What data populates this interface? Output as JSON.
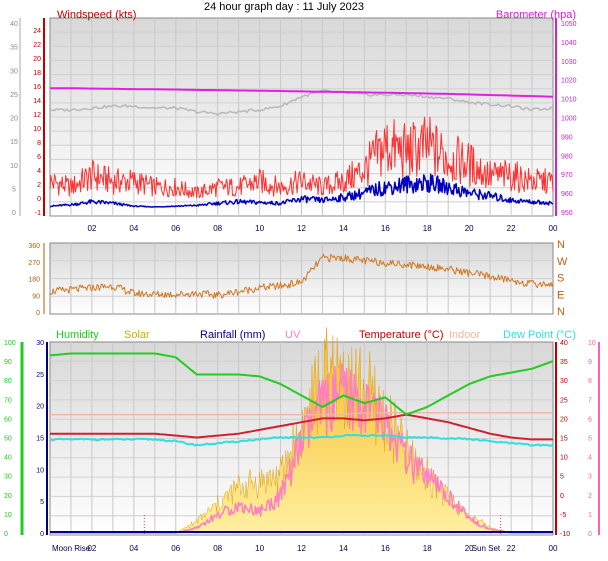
{
  "title": "24 hour graph day : 11 July 2023",
  "time_ticks": [
    "02",
    "04",
    "06",
    "08",
    "10",
    "12",
    "14",
    "16",
    "18",
    "20",
    "22",
    "00"
  ],
  "colors": {
    "wind_speed": "#ff0000",
    "wind_gust": "#ff3030",
    "wind_avg": "#0000c0",
    "barometer": "#e020e0",
    "barometer_gray": "#b8b8b8",
    "direction": "#d07820",
    "humidity": "#22cc22",
    "solar": "#f0c030",
    "rainfall": "#000088",
    "uv": "#ff80c0",
    "temperature": "#d02030",
    "indoor": "#f0b8a0",
    "dew_point": "#30e0e0"
  },
  "chart_data": [
    {
      "type": "line",
      "name": "wind-barometer",
      "legend_left": "Windspeed (kts)",
      "legend_right": "Barometer (hpa)",
      "y_left_outer_ticks": [
        "40",
        "35",
        "30",
        "25",
        "20",
        "15",
        "10",
        "5",
        "0"
      ],
      "y_left_ticks": [
        "24",
        "22",
        "20",
        "18",
        "16",
        "14",
        "12",
        "10",
        "8",
        "6",
        "4",
        "2",
        "0",
        "-1"
      ],
      "y_right_ticks": [
        "1050",
        "1040",
        "1030",
        "1020",
        "1010",
        "1000",
        "990",
        "980",
        "970",
        "960",
        "950"
      ],
      "ylim_left": [
        -1,
        24
      ],
      "ylim_right": [
        950,
        1050
      ],
      "x": [
        0,
        1,
        2,
        3,
        4,
        5,
        6,
        7,
        8,
        9,
        10,
        11,
        12,
        13,
        14,
        15,
        16,
        17,
        18,
        19,
        20,
        21,
        22,
        23,
        24
      ],
      "series": [
        {
          "name": "Barometer",
          "axis": "right",
          "values": [
            1015.5,
            1015.5,
            1015.3,
            1015.2,
            1015.0,
            1014.9,
            1014.8,
            1014.6,
            1014.5,
            1014.3,
            1014.2,
            1014.0,
            1013.8,
            1013.6,
            1013.5,
            1013.3,
            1013.1,
            1012.9,
            1012.7,
            1012.5,
            1012.2,
            1011.9,
            1011.6,
            1011.3,
            1011.0
          ]
        },
        {
          "name": "Barometer trace (grey)",
          "axis": "right",
          "values": [
            1004,
            1004,
            1005,
            1006,
            1006,
            1005,
            1005,
            1003,
            1002,
            1003,
            1004,
            1006,
            1011,
            1014,
            1013,
            1012,
            1012,
            1012,
            1011,
            1010,
            1008,
            1007,
            1006,
            1004,
            1005
          ]
        },
        {
          "name": "Wind gust",
          "axis": "left",
          "values": [
            4,
            3,
            5,
            4,
            4,
            3,
            3,
            2,
            3,
            3,
            4,
            3,
            4,
            3,
            4,
            6,
            10,
            9,
            10,
            8,
            7,
            5,
            5,
            4,
            4
          ]
        },
        {
          "name": "Wind average",
          "axis": "left",
          "values": [
            0.2,
            0.4,
            0.8,
            0.6,
            0.2,
            0.1,
            0.2,
            0.3,
            0.6,
            0.8,
            0.7,
            0.6,
            1.2,
            1.0,
            1.4,
            2.0,
            2.8,
            3.2,
            3.4,
            2.8,
            2.0,
            1.6,
            1.0,
            0.8,
            0.6
          ]
        }
      ]
    },
    {
      "type": "line",
      "name": "wind-direction",
      "y_left_ticks": [
        "360",
        "270",
        "180",
        "90",
        "0"
      ],
      "y_right_ticks": [
        "N",
        "W",
        "S",
        "E",
        "N"
      ],
      "ylim": [
        0,
        360
      ],
      "x": [
        0,
        1,
        2,
        3,
        4,
        5,
        6,
        7,
        8,
        9,
        10,
        11,
        12,
        13,
        14,
        15,
        16,
        17,
        18,
        19,
        20,
        21,
        22,
        23,
        24
      ],
      "values": [
        110,
        120,
        130,
        140,
        100,
        95,
        95,
        100,
        90,
        110,
        130,
        140,
        160,
        290,
        290,
        275,
        265,
        255,
        245,
        230,
        210,
        190,
        170,
        150,
        150
      ]
    },
    {
      "type": "line",
      "name": "temperature-humidity",
      "legend": [
        "Humidity",
        "Solar",
        "Rainfall (mm)",
        "UV",
        "Temperature (°C)",
        "Indoor",
        "Dew Point (°C)"
      ],
      "y_humidity_ticks": [
        "100",
        "90",
        "80",
        "70",
        "60",
        "50",
        "40",
        "30",
        "20",
        "10",
        "0"
      ],
      "y_temp_left_ticks": [
        "30",
        "25",
        "20",
        "15",
        "10",
        "5",
        "0"
      ],
      "y_temp_right_ticks": [
        "40",
        "35",
        "30",
        "25",
        "20",
        "15",
        "10",
        "5",
        "0",
        "-5",
        "-10"
      ],
      "y_uv_ticks": [
        "10",
        "9",
        "8",
        "7",
        "6",
        "5",
        "4",
        "3",
        "2",
        "1",
        "0"
      ],
      "x_labels": [
        "Moon Rise",
        "02",
        "04",
        "06",
        "08",
        "10",
        "12",
        "14",
        "16",
        "18",
        "20",
        "Sun Set",
        "22",
        "00"
      ],
      "x": [
        0,
        1,
        2,
        3,
        4,
        5,
        6,
        7,
        8,
        9,
        10,
        11,
        12,
        13,
        14,
        15,
        16,
        17,
        18,
        19,
        20,
        21,
        22,
        23,
        24
      ],
      "series": [
        {
          "name": "Humidity",
          "unit": "%",
          "values": [
            93,
            94,
            94,
            94,
            94,
            94,
            92,
            83,
            83,
            83,
            82,
            78,
            72,
            66,
            72,
            68,
            71,
            62,
            66,
            72,
            78,
            82,
            84,
            86,
            90
          ]
        },
        {
          "name": "Temperature (°C)",
          "unit": "°C",
          "values": [
            16,
            16,
            16,
            16,
            16,
            16,
            15.5,
            15,
            15.5,
            16,
            17,
            18,
            19,
            20,
            20,
            19.5,
            20,
            21,
            20,
            19,
            17.5,
            16,
            15,
            14.5,
            14.5
          ]
        },
        {
          "name": "Indoor",
          "unit": "°C",
          "values": [
            21,
            21,
            21,
            21,
            21,
            21,
            21,
            21,
            21,
            21,
            21,
            21,
            21,
            21,
            21,
            21.5,
            21.5,
            21.5,
            21.5,
            21.5,
            21.5,
            21.5,
            21.5,
            21.5,
            21.5
          ]
        },
        {
          "name": "Dew Point (°C)",
          "unit": "°C",
          "values": [
            14.5,
            14.5,
            14.5,
            14.5,
            14.5,
            14.5,
            14.0,
            13.0,
            13.5,
            14.0,
            14.5,
            15.0,
            15.0,
            15.0,
            15.5,
            15.5,
            15.5,
            15.0,
            15.0,
            14.8,
            14.6,
            14.0,
            13.5,
            13.0,
            13.0
          ]
        },
        {
          "name": "UV",
          "unit": "index",
          "values": [
            0,
            0,
            0,
            0,
            0,
            0,
            0,
            0.3,
            1,
            1.5,
            1.2,
            2,
            5,
            7,
            7.5,
            7,
            6,
            4,
            3,
            2,
            0.8,
            0.2,
            0,
            0,
            0
          ]
        },
        {
          "name": "Solar",
          "unit": "W/m²",
          "values": [
            0,
            0,
            0,
            0,
            0,
            0,
            0,
            2,
            5,
            8,
            9,
            10,
            18,
            27,
            27,
            25,
            20,
            14,
            10,
            6,
            3,
            1,
            0,
            0,
            0
          ]
        },
        {
          "name": "Rainfall (mm)",
          "unit": "mm",
          "values": [
            0,
            0,
            0,
            0,
            0,
            0,
            0,
            0,
            0,
            0,
            0,
            0,
            0,
            0,
            0,
            0,
            0,
            0,
            0,
            0,
            0,
            0,
            0,
            0,
            0
          ]
        }
      ]
    }
  ]
}
